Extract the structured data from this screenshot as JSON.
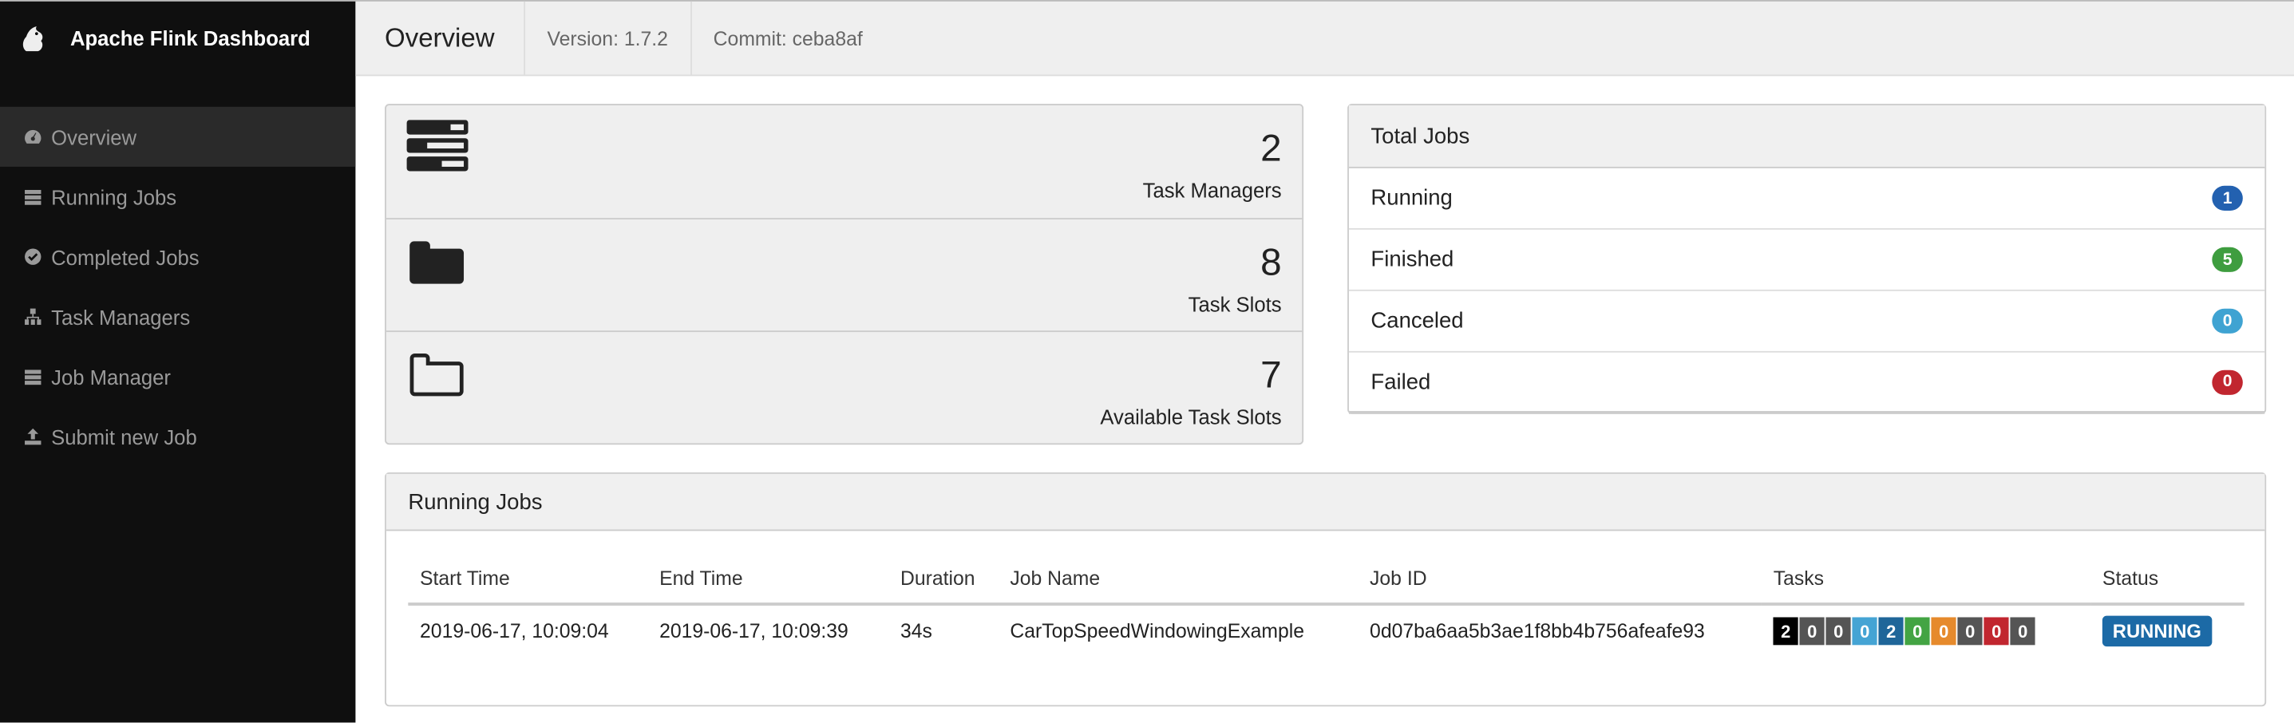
{
  "app": {
    "title": "Apache Flink Dashboard",
    "logo": "flink-squirrel-logo"
  },
  "sidebar": {
    "items": [
      {
        "label": "Overview",
        "icon": "dashboard-icon",
        "active": true
      },
      {
        "label": "Running Jobs",
        "icon": "tasks-icon"
      },
      {
        "label": "Completed Jobs",
        "icon": "check-circle-icon"
      },
      {
        "label": "Task Managers",
        "icon": "sitemap-icon"
      },
      {
        "label": "Job Manager",
        "icon": "tasks-icon"
      },
      {
        "label": "Submit new Job",
        "icon": "upload-icon"
      }
    ]
  },
  "header": {
    "title": "Overview",
    "version": "Version: 1.7.2",
    "commit": "Commit: ceba8af"
  },
  "stats": [
    {
      "value": "2",
      "label": "Task Managers",
      "icon": "server-icon"
    },
    {
      "value": "8",
      "label": "Task Slots",
      "icon": "folder-icon"
    },
    {
      "value": "7",
      "label": "Available Task Slots",
      "icon": "folder-open-icon"
    }
  ],
  "total_jobs": {
    "title": "Total Jobs",
    "rows": [
      {
        "label": "Running",
        "count": "1",
        "color": "#2361b0"
      },
      {
        "label": "Finished",
        "count": "5",
        "color": "#3e9d3f"
      },
      {
        "label": "Canceled",
        "count": "0",
        "color": "#3fa3d2"
      },
      {
        "label": "Failed",
        "count": "0",
        "color": "#c1262f"
      }
    ]
  },
  "running_jobs": {
    "title": "Running Jobs",
    "columns": [
      "Start Time",
      "End Time",
      "Duration",
      "Job Name",
      "Job ID",
      "Tasks",
      "Status"
    ],
    "rows": [
      {
        "start": "2019-06-17, 10:09:04",
        "end": "2019-06-17, 10:09:39",
        "duration": "34s",
        "name": "CarTopSpeedWindowingExample",
        "id": "0d07ba6aa5b3ae1f8bb4b756afeafe93",
        "tasks": [
          {
            "v": "2",
            "color": "#000000"
          },
          {
            "v": "0",
            "color": "#555555"
          },
          {
            "v": "0",
            "color": "#555555"
          },
          {
            "v": "0",
            "color": "#45a4d4"
          },
          {
            "v": "2",
            "color": "#1f6699"
          },
          {
            "v": "0",
            "color": "#43a443"
          },
          {
            "v": "0",
            "color": "#e68a2c"
          },
          {
            "v": "0",
            "color": "#555555"
          },
          {
            "v": "0",
            "color": "#c1262f"
          },
          {
            "v": "0",
            "color": "#555555"
          }
        ],
        "status": "RUNNING"
      }
    ]
  }
}
